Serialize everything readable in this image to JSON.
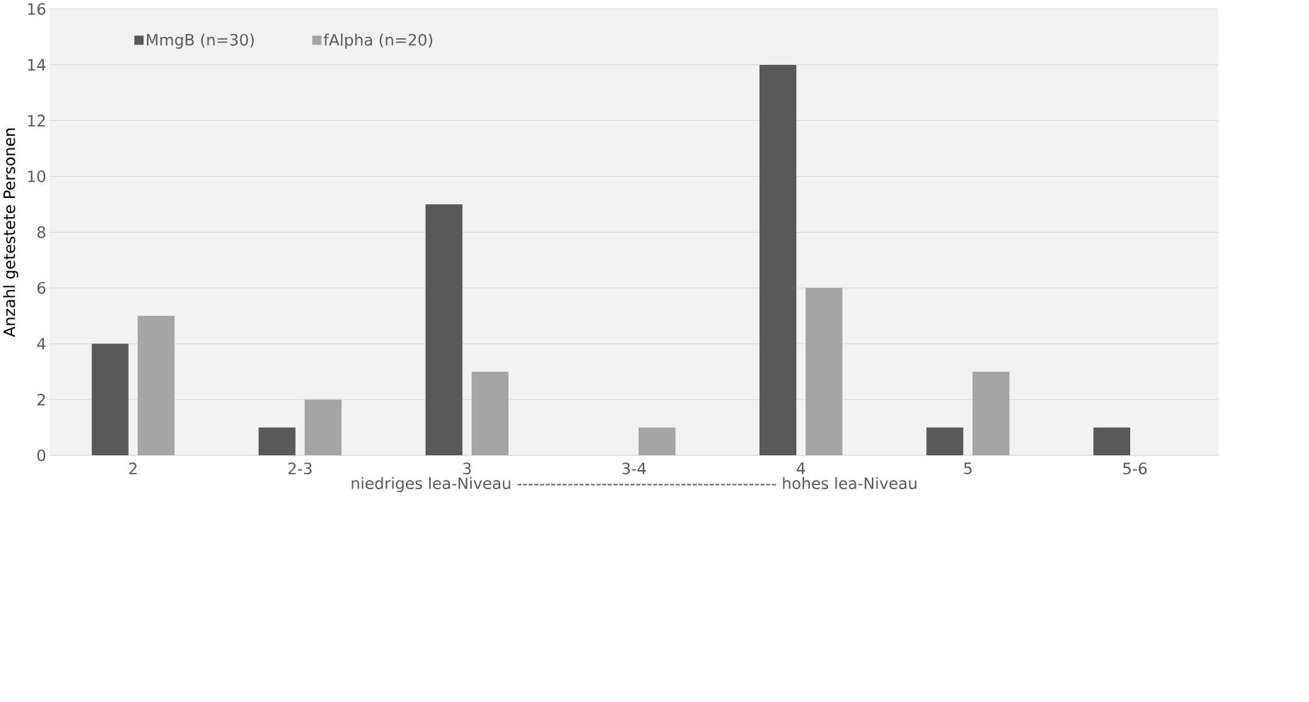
{
  "chart_data": {
    "type": "bar",
    "ylabel": "Anzahl getestete Personen",
    "xlabel": "niedriges lea-Niveau ---------------------------------------------- hohes lea-Niveau",
    "categories": [
      "2",
      "2-3",
      "3",
      "3-4",
      "4",
      "5",
      "5-6"
    ],
    "series": [
      {
        "name": "MmgB (n=30)",
        "color": "#595959",
        "values": [
          4,
          1,
          9,
          0,
          14,
          1,
          1
        ]
      },
      {
        "name": "fAlpha (n=20)",
        "color": "#a5a5a5",
        "values": [
          5,
          2,
          3,
          1,
          6,
          3,
          0
        ]
      }
    ],
    "ylim": [
      0,
      16
    ],
    "yticks": [
      0,
      2,
      4,
      6,
      8,
      10,
      12,
      14,
      16
    ],
    "grid": "y",
    "legend": "top left"
  }
}
